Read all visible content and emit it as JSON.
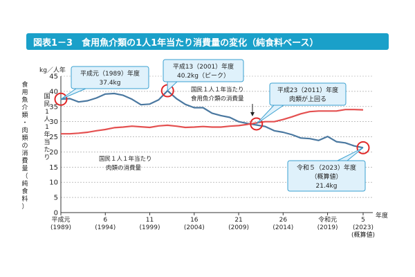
{
  "header": {
    "title": "図表1－3　食用魚介類の1人1年当たり消費量の変化（純食料ベース）"
  },
  "colors": {
    "fish": "#4a78a0",
    "meat": "#e45050",
    "highlight": "#e02828",
    "callout_fill": "#dff1fb",
    "callout_stroke": "#3aa0d0",
    "grid": "#999999",
    "title_bg": "#1aa0c9"
  },
  "chart_data": {
    "type": "line",
    "title": "食用魚介類の1人1年当たり消費量の変化（純食料ベース）",
    "ylabel": "国民1人1年当たり 食用魚介類・肉類の消費量（純食料）",
    "y_unit": "kg／人年",
    "xlabel": "年度",
    "ylim": [
      0,
      45
    ],
    "y_ticks": [
      0,
      5,
      10,
      15,
      20,
      25,
      30,
      35,
      40,
      45
    ],
    "x": [
      1989,
      1990,
      1991,
      1992,
      1993,
      1994,
      1995,
      1996,
      1997,
      1998,
      1999,
      2000,
      2001,
      2002,
      2003,
      2004,
      2005,
      2006,
      2007,
      2008,
      2009,
      2010,
      2011,
      2012,
      2013,
      2014,
      2015,
      2016,
      2017,
      2018,
      2019,
      2020,
      2021,
      2022,
      2023
    ],
    "x_ticks": [
      {
        "year": 1989,
        "label": "平成元",
        "sub": "(1989)"
      },
      {
        "year": 1994,
        "label": "6",
        "sub": "(1994)"
      },
      {
        "year": 1999,
        "label": "11",
        "sub": "(1999)"
      },
      {
        "year": 2004,
        "label": "16",
        "sub": "(2004)"
      },
      {
        "year": 2009,
        "label": "21",
        "sub": "(2009)"
      },
      {
        "year": 2014,
        "label": "26",
        "sub": "(2014)"
      },
      {
        "year": 2019,
        "label": "令和元",
        "sub": "(2019)"
      },
      {
        "year": 2023,
        "label": "5",
        "sub": "(2023)",
        "sub2": "(概算値)"
      }
    ],
    "grid": true,
    "series": [
      {
        "name": "国民１人１年当たり 食用魚介類の消費量",
        "color": "#4a78a0",
        "values": [
          37.4,
          37.6,
          36.5,
          36.9,
          37.8,
          39.1,
          39.3,
          38.7,
          37.4,
          35.6,
          35.8,
          37.2,
          40.2,
          37.6,
          35.7,
          34.6,
          34.6,
          32.8,
          32.0,
          31.4,
          30.0,
          29.4,
          28.9,
          28.4,
          27.0,
          26.5,
          25.7,
          24.6,
          24.4,
          23.8,
          25.1,
          23.4,
          23.0,
          22.0,
          21.4
        ]
      },
      {
        "name": "国民１人１年当たり 肉類の消費量",
        "color": "#e45050",
        "values": [
          26.0,
          26.0,
          26.2,
          26.5,
          27.0,
          27.4,
          28.0,
          28.2,
          28.5,
          28.3,
          28.1,
          28.6,
          28.8,
          28.5,
          28.1,
          28.2,
          28.4,
          28.2,
          28.2,
          28.5,
          28.7,
          29.1,
          29.6,
          30.0,
          30.0,
          30.7,
          31.6,
          32.6,
          33.3,
          33.5,
          33.5,
          33.5,
          34.0,
          34.0,
          33.9
        ]
      }
    ],
    "annotations": [
      {
        "line1": "平成元（1989）年度",
        "line2": "37.4kg"
      },
      {
        "line1": "平成13（2001）年度",
        "line2": "40.2kg（ピーク）"
      },
      {
        "line1": "平成23（2011）年度",
        "line2": "肉類が上回る"
      },
      {
        "line1": "令和５（2023）年度",
        "line2": "（概算値）",
        "line3": "21.4kg"
      }
    ],
    "series_labels": {
      "fish_line1": "国民１人１年当たり",
      "fish_line2": "食用魚介類の消費量",
      "meat_line1": "国民１人１年当たり",
      "meat_line2": "肉類の消費量"
    }
  }
}
